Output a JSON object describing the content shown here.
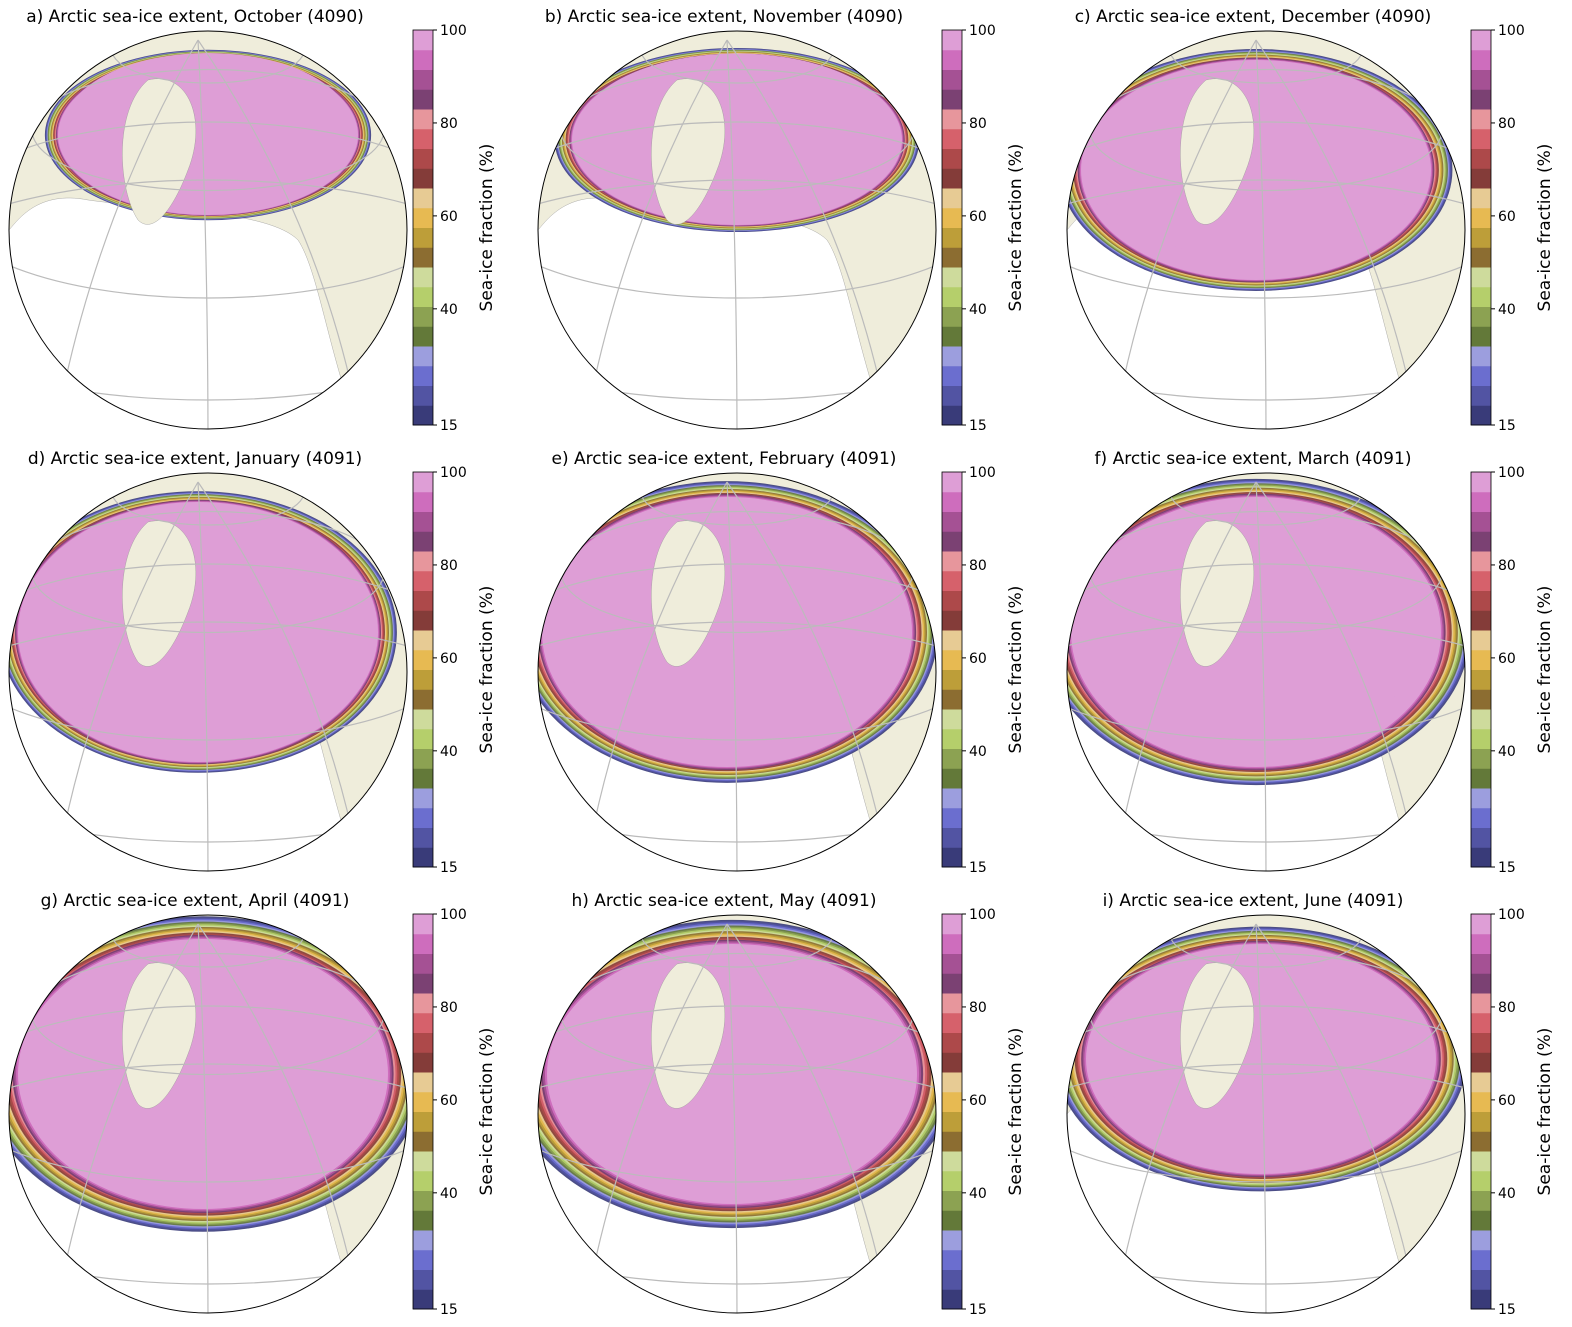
{
  "panels": [
    {
      "title": "a) Arctic sea-ice extent, October (4090)"
    },
    {
      "title": "b) Arctic sea-ice extent, November (4090)"
    },
    {
      "title": "c) Arctic sea-ice extent, December (4090)"
    },
    {
      "title": "d) Arctic sea-ice extent, January (4091)"
    },
    {
      "title": "e) Arctic sea-ice extent, February (4091)"
    },
    {
      "title": "f) Arctic sea-ice extent, March (4091)"
    },
    {
      "title": "g) Arctic sea-ice extent, April (4091)"
    },
    {
      "title": "h) Arctic sea-ice extent, May (4091)"
    },
    {
      "title": "i) Arctic sea-ice extent, June (4091)"
    }
  ],
  "colorbar": {
    "label": "Sea-ice fraction (%)",
    "lim": [
      15,
      100
    ],
    "ticks": [
      15,
      40,
      60,
      80,
      100
    ],
    "colors": [
      "#393b79",
      "#5254a3",
      "#6b6ecf",
      "#9c9ede",
      "#637939",
      "#8ca252",
      "#b5cf6b",
      "#cedb9c",
      "#8c6d31",
      "#bd9e39",
      "#e7ba52",
      "#e7cb94",
      "#843c39",
      "#ad494a",
      "#d6616b",
      "#e7969c",
      "#7b4173",
      "#a55194",
      "#ce6dbd",
      "#de9ed6"
    ]
  }
}
